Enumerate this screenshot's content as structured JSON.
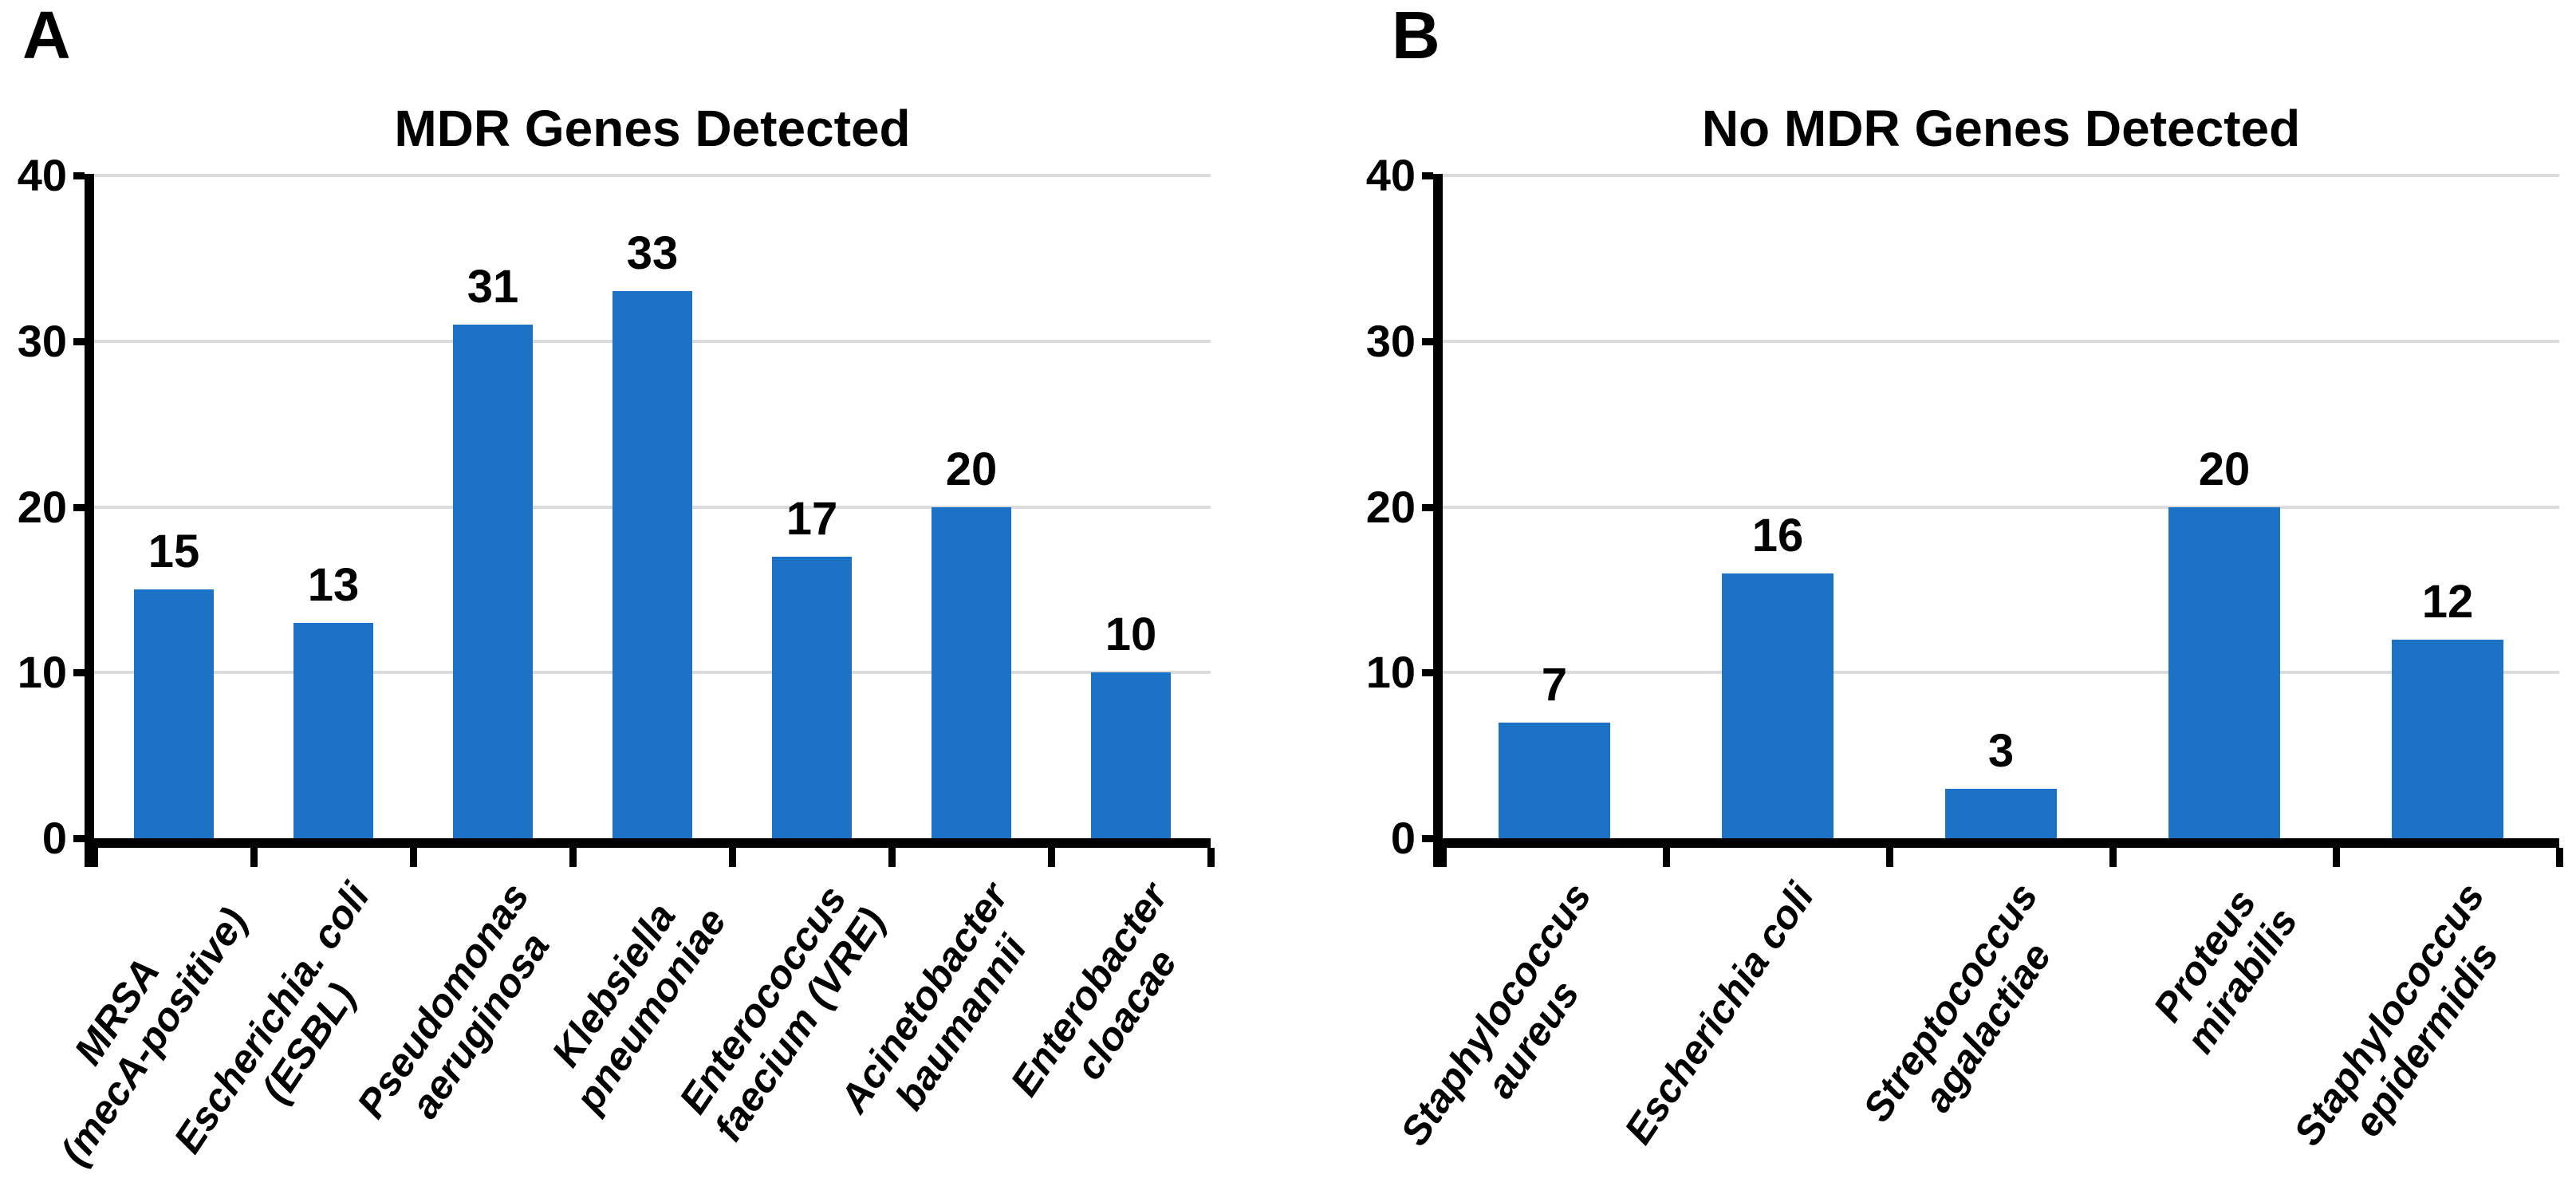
{
  "figure": {
    "background_color": "#FFFFFF",
    "text_color": "#000000",
    "panel_count": 2
  },
  "chart_data": [
    {
      "type": "bar",
      "panel_label": "A",
      "title": "MDR Genes Detected",
      "categories": [
        [
          "MRSA",
          "(mecA-positive)"
        ],
        [
          "Escherichia. coli",
          "(ESBL)"
        ],
        [
          "Pseudomonas",
          "aeruginosa"
        ],
        [
          "Klebsiella",
          "pneumoniae"
        ],
        [
          "Enterococcus",
          "faecium (VRE)"
        ],
        [
          "Acinetobacter",
          "baumannii"
        ],
        [
          "Enterobacter",
          "cloacae"
        ]
      ],
      "values": [
        15,
        13,
        31,
        33,
        17,
        20,
        10
      ],
      "xlabel": "",
      "ylabel": "",
      "ylim": [
        0,
        40
      ],
      "yticks": [
        0,
        10,
        20,
        30,
        40
      ],
      "grid": "horizontal",
      "legend": "none",
      "bar_color": "#1B72C7",
      "gridline_color": "#DCDCDC",
      "axis_color": "#000000"
    },
    {
      "type": "bar",
      "panel_label": "B",
      "title": "No MDR Genes Detected",
      "categories": [
        [
          "Staphylococcus",
          "aureus"
        ],
        [
          "Escherichia coli"
        ],
        [
          "Streptococcus",
          "agalactiae"
        ],
        [
          "Proteus",
          "mirabilis"
        ],
        [
          "Staphylococcus",
          "epidermidis"
        ]
      ],
      "values": [
        7,
        16,
        3,
        20,
        12
      ],
      "xlabel": "",
      "ylabel": "",
      "ylim": [
        0,
        40
      ],
      "yticks": [
        0,
        10,
        20,
        30,
        40
      ],
      "grid": "horizontal",
      "legend": "none",
      "bar_color": "#1B72C7",
      "gridline_color": "#DCDCDC",
      "axis_color": "#000000"
    }
  ]
}
